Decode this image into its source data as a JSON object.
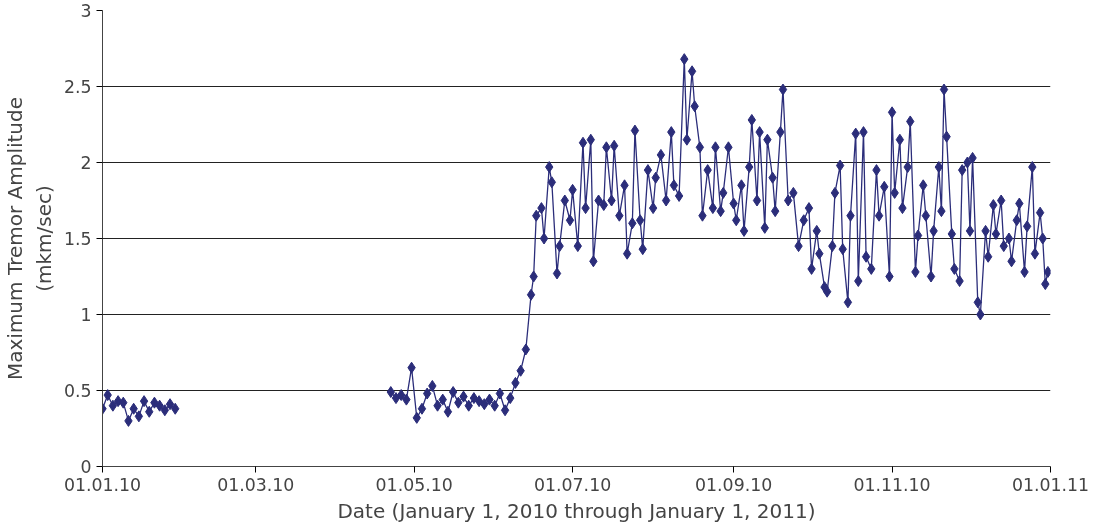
{
  "chart_data": {
    "type": "line",
    "xlabel": "Date (January 1, 2010 through January 1, 2011)",
    "ylabel": "Maximum Tremor Amplitude\n(mkm/sec)",
    "x": [
      "2010-01-01",
      "2010-01-03",
      "2010-01-05",
      "2010-01-07",
      "2010-01-09",
      "2010-01-11",
      "2010-01-13",
      "2010-01-15",
      "2010-01-17",
      "2010-01-19",
      "2010-01-21",
      "2010-01-23",
      "2010-01-25",
      "2010-01-27",
      "2010-01-29",
      "2010-03-01",
      "2010-04-22",
      "2010-04-24",
      "2010-04-26",
      "2010-04-28",
      "2010-04-30",
      "2010-05-02",
      "2010-05-04",
      "2010-05-06",
      "2010-05-08",
      "2010-05-10",
      "2010-05-12",
      "2010-05-14",
      "2010-05-16",
      "2010-05-18",
      "2010-05-20",
      "2010-05-22",
      "2010-05-24",
      "2010-05-26",
      "2010-05-28",
      "2010-05-30",
      "2010-06-01",
      "2010-06-03",
      "2010-06-05",
      "2010-06-07",
      "2010-06-09",
      "2010-06-11",
      "2010-06-13",
      "2010-06-15",
      "2010-06-16",
      "2010-06-17",
      "2010-06-19",
      "2010-06-20",
      "2010-06-22",
      "2010-06-23",
      "2010-06-25",
      "2010-06-26",
      "2010-06-28",
      "2010-06-30",
      "2010-07-01",
      "2010-07-03",
      "2010-07-05",
      "2010-07-06",
      "2010-07-08",
      "2010-07-09",
      "2010-07-11",
      "2010-07-13",
      "2010-07-14",
      "2010-07-16",
      "2010-07-17",
      "2010-07-19",
      "2010-07-21",
      "2010-07-22",
      "2010-07-24",
      "2010-07-25",
      "2010-07-27",
      "2010-07-28",
      "2010-07-30",
      "2010-08-01",
      "2010-08-02",
      "2010-08-04",
      "2010-08-06",
      "2010-08-08",
      "2010-08-09",
      "2010-08-11",
      "2010-08-13",
      "2010-08-14",
      "2010-08-16",
      "2010-08-17",
      "2010-08-19",
      "2010-08-20",
      "2010-08-22",
      "2010-08-24",
      "2010-08-25",
      "2010-08-27",
      "2010-08-28",
      "2010-08-30",
      "2010-09-01",
      "2010-09-02",
      "2010-09-04",
      "2010-09-05",
      "2010-09-07",
      "2010-09-08",
      "2010-09-10",
      "2010-09-11",
      "2010-09-13",
      "2010-09-14",
      "2010-09-16",
      "2010-09-17",
      "2010-09-19",
      "2010-09-20",
      "2010-09-22",
      "2010-09-24",
      "2010-09-26",
      "2010-09-28",
      "2010-09-30",
      "2010-10-01",
      "2010-10-03",
      "2010-10-04",
      "2010-10-06",
      "2010-10-07",
      "2010-10-09",
      "2010-10-10",
      "2010-10-12",
      "2010-10-13",
      "2010-10-15",
      "2010-10-16",
      "2010-10-18",
      "2010-10-19",
      "2010-10-21",
      "2010-10-22",
      "2010-10-24",
      "2010-10-26",
      "2010-10-27",
      "2010-10-29",
      "2010-10-31",
      "2010-11-01",
      "2010-11-02",
      "2010-11-04",
      "2010-11-05",
      "2010-11-07",
      "2010-11-08",
      "2010-11-10",
      "2010-11-11",
      "2010-11-13",
      "2010-11-14",
      "2010-11-16",
      "2010-11-17",
      "2010-11-19",
      "2010-11-20",
      "2010-11-21",
      "2010-11-22",
      "2010-11-24",
      "2010-11-25",
      "2010-11-27",
      "2010-11-28",
      "2010-11-30",
      "2010-12-01",
      "2010-12-02",
      "2010-12-04",
      "2010-12-05",
      "2010-12-07",
      "2010-12-08",
      "2010-12-10",
      "2010-12-11",
      "2010-12-13",
      "2010-12-14",
      "2010-12-16",
      "2010-12-17",
      "2010-12-19",
      "2010-12-20",
      "2010-12-22",
      "2010-12-23",
      "2010-12-25",
      "2010-12-26",
      "2010-12-28",
      "2010-12-29",
      "2010-12-30",
      "2010-12-31"
    ],
    "series": [
      {
        "color": "#2b2d7a",
        "values": [
          0.38,
          0.47,
          0.4,
          0.43,
          0.42,
          0.3,
          0.38,
          0.33,
          0.43,
          0.36,
          0.42,
          0.4,
          0.37,
          0.41,
          0.38,
          null,
          0.49,
          0.45,
          0.47,
          0.44,
          0.65,
          0.32,
          0.38,
          0.48,
          0.53,
          0.4,
          0.44,
          0.36,
          0.49,
          0.42,
          0.46,
          0.4,
          0.45,
          0.43,
          0.41,
          0.44,
          0.4,
          0.48,
          0.37,
          0.45,
          0.55,
          0.63,
          0.77,
          1.13,
          1.25,
          1.65,
          1.7,
          1.5,
          1.97,
          1.87,
          1.27,
          1.45,
          1.75,
          1.62,
          1.82,
          1.45,
          2.13,
          1.7,
          2.15,
          1.35,
          1.75,
          1.72,
          2.1,
          1.75,
          2.11,
          1.65,
          1.85,
          1.4,
          1.6,
          2.21,
          1.62,
          1.43,
          1.95,
          1.7,
          1.9,
          2.05,
          1.75,
          2.2,
          1.85,
          1.78,
          2.68,
          2.15,
          2.6,
          2.37,
          2.1,
          1.65,
          1.95,
          1.7,
          2.1,
          1.68,
          1.8,
          2.1,
          1.73,
          1.62,
          1.85,
          1.55,
          1.97,
          2.28,
          1.75,
          2.2,
          1.57,
          2.15,
          1.9,
          1.68,
          2.2,
          2.48,
          1.75,
          1.8,
          1.45,
          1.62,
          1.7,
          1.3,
          1.55,
          1.4,
          1.18,
          1.15,
          1.45,
          1.8,
          1.98,
          1.43,
          1.08,
          1.65,
          2.19,
          1.22,
          2.2,
          1.38,
          1.3,
          1.95,
          1.65,
          1.84,
          1.25,
          2.33,
          1.8,
          2.15,
          1.7,
          1.97,
          2.27,
          1.28,
          1.52,
          1.85,
          1.65,
          1.25,
          1.55,
          1.97,
          1.68,
          2.48,
          2.17,
          1.53,
          1.3,
          1.22,
          1.95,
          2.0,
          1.55,
          2.03,
          1.08,
          1.0,
          1.55,
          1.38,
          1.72,
          1.53,
          1.75,
          1.45,
          1.5,
          1.35,
          1.62,
          1.73,
          1.28,
          1.58,
          1.97,
          1.4,
          1.67,
          1.5,
          1.2,
          1.28
        ]
      }
    ],
    "xlim": [
      "2010-01-01",
      "2011-01-01"
    ],
    "xticks": [
      {
        "value": "2010-01-01",
        "label": "01.01.10"
      },
      {
        "value": "2010-03-01",
        "label": "01.03.10"
      },
      {
        "value": "2010-05-01",
        "label": "01.05.10"
      },
      {
        "value": "2010-07-01",
        "label": "01.07.10"
      },
      {
        "value": "2010-09-01",
        "label": "01.09.10"
      },
      {
        "value": "2010-11-01",
        "label": "01.11.10"
      },
      {
        "value": "2011-01-01",
        "label": "01.01.11"
      }
    ],
    "ylim": [
      0,
      3
    ],
    "yticks": [
      0,
      0.5,
      1,
      1.5,
      2,
      2.5,
      3
    ],
    "grid": "y",
    "marker": "diamond",
    "line_style": "solid"
  }
}
